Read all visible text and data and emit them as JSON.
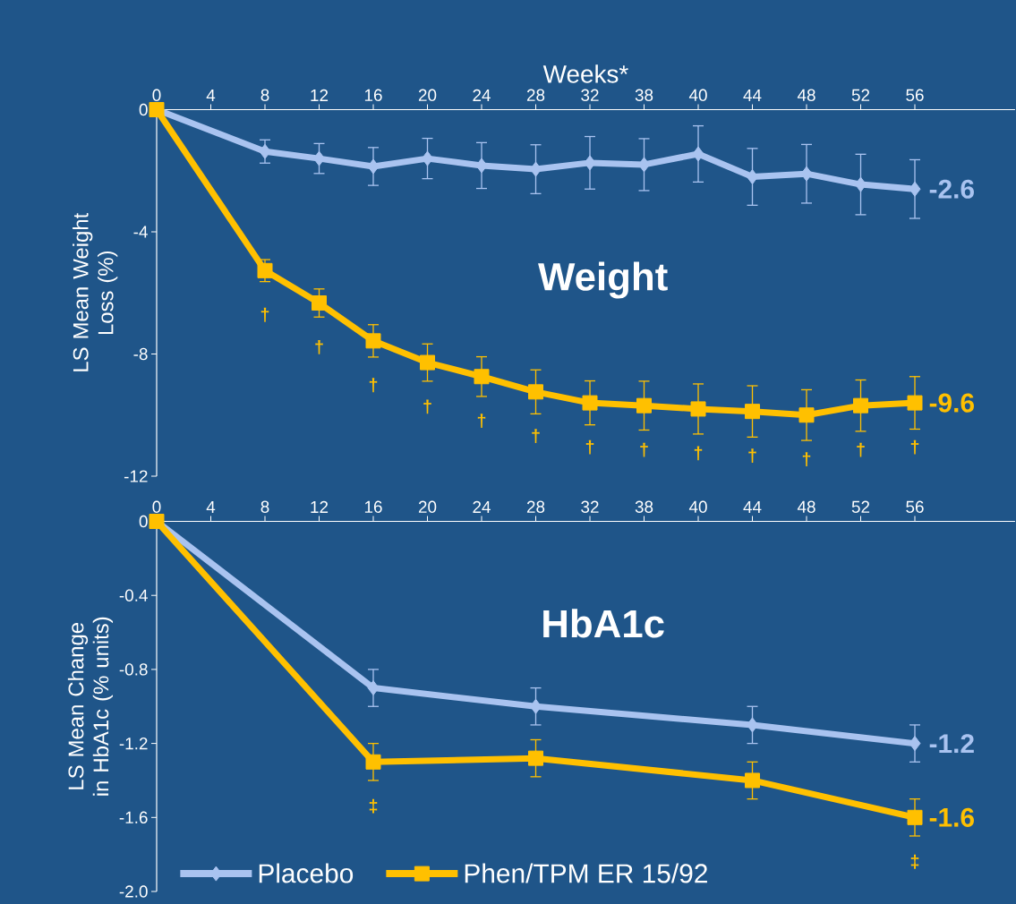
{
  "chart_data": [
    {
      "type": "line",
      "title": "Weight",
      "xlabel": "Weeks*",
      "ylabel": "LS Mean Weight Loss (%)",
      "categories": [
        "0",
        "4",
        "8",
        "12",
        "16",
        "20",
        "24",
        "28",
        "32",
        "38",
        "40",
        "44",
        "48",
        "52",
        "56"
      ],
      "ylim": [
        -12,
        0
      ],
      "yticks": [
        0,
        -4,
        -8,
        -12
      ],
      "series": [
        {
          "color": "#a9c3f0",
          "marker": "diamond",
          "values": [
            0,
            null,
            -1.37,
            -1.6,
            -1.86,
            -1.6,
            -1.83,
            -1.95,
            -1.74,
            -1.8,
            -1.45,
            -2.2,
            -2.1,
            -2.45,
            -2.6
          ],
          "errors": [
            null,
            null,
            0.38,
            0.49,
            0.62,
            0.66,
            0.75,
            0.8,
            0.86,
            0.85,
            0.92,
            0.93,
            0.96,
            0.99,
            0.96
          ],
          "value_labels": [
            null,
            null,
            null,
            null,
            null,
            null,
            null,
            null,
            null,
            null,
            null,
            null,
            null,
            null,
            "-2.6"
          ]
        },
        {
          "color": "#ffc000",
          "marker": "square",
          "values": [
            0,
            null,
            -5.27,
            -6.33,
            -7.57,
            -8.28,
            -8.74,
            -9.24,
            -9.6,
            -9.69,
            -9.8,
            -9.88,
            -10.0,
            -9.69,
            -9.6
          ],
          "errors": [
            null,
            null,
            0.36,
            0.46,
            0.53,
            0.61,
            0.65,
            0.72,
            0.72,
            0.8,
            0.82,
            0.84,
            0.83,
            0.84,
            0.86
          ],
          "value_labels": [
            null,
            null,
            null,
            null,
            null,
            null,
            null,
            null,
            null,
            null,
            null,
            null,
            null,
            null,
            "-9.6"
          ]
        }
      ],
      "annotations": [
        {
          "text": "†",
          "x": "8",
          "y": -5.27
        },
        {
          "text": "†",
          "x": "12",
          "y": -6.33
        },
        {
          "text": "†",
          "x": "16",
          "y": -7.57
        },
        {
          "text": "†",
          "x": "20",
          "y": -8.28
        },
        {
          "text": "†",
          "x": "24",
          "y": -8.74
        },
        {
          "text": "†",
          "x": "28",
          "y": -9.24
        },
        {
          "text": "†",
          "x": "32",
          "y": -9.6
        },
        {
          "text": "†",
          "x": "38",
          "y": -9.69
        },
        {
          "text": "†",
          "x": "40",
          "y": -9.8
        },
        {
          "text": "†",
          "x": "44",
          "y": -9.88
        },
        {
          "text": "†",
          "x": "48",
          "y": -10.0
        },
        {
          "text": "†",
          "x": "52",
          "y": -9.69
        },
        {
          "text": "†",
          "x": "56",
          "y": -9.6
        }
      ]
    },
    {
      "type": "line",
      "title": "HbA1c",
      "ylabel": "LS Mean Change in HbA1c (% units)",
      "categories": [
        "0",
        "4",
        "8",
        "12",
        "16",
        "20",
        "24",
        "28",
        "32",
        "38",
        "40",
        "44",
        "48",
        "52",
        "56"
      ],
      "ylim": [
        -2.0,
        0
      ],
      "yticks": [
        0,
        -0.4,
        -0.8,
        -1.2,
        -1.6,
        {
          "value": -2.0,
          "label": "-2.0"
        }
      ],
      "legend": "bottom left",
      "series": [
        {
          "name": "Placebo",
          "color": "#a9c3f0",
          "marker": "diamond",
          "values": [
            0,
            null,
            null,
            null,
            -0.9,
            null,
            null,
            -1.0,
            null,
            null,
            null,
            -1.1,
            null,
            null,
            -1.2
          ],
          "errors": [
            null,
            null,
            null,
            null,
            0.1,
            null,
            null,
            0.1,
            null,
            null,
            null,
            0.1,
            null,
            null,
            0.1
          ],
          "value_labels": [
            null,
            null,
            null,
            null,
            null,
            null,
            null,
            null,
            null,
            null,
            null,
            null,
            null,
            null,
            "-1.2"
          ]
        },
        {
          "name": "Phen/TPM ER 15/92",
          "color": "#ffc000",
          "marker": "square",
          "values": [
            0,
            null,
            null,
            null,
            -1.3,
            null,
            null,
            -1.28,
            null,
            null,
            null,
            -1.4,
            null,
            null,
            -1.6
          ],
          "errors": [
            null,
            null,
            null,
            null,
            0.1,
            null,
            null,
            0.1,
            null,
            null,
            null,
            0.1,
            null,
            null,
            0.1
          ],
          "value_labels": [
            null,
            null,
            null,
            null,
            null,
            null,
            null,
            null,
            null,
            null,
            null,
            null,
            null,
            null,
            "-1.6"
          ]
        }
      ],
      "annotations": [
        {
          "text": "‡",
          "x": "16",
          "y": -1.3
        },
        {
          "text": "‡",
          "x": "56",
          "y": -1.6
        }
      ]
    }
  ]
}
